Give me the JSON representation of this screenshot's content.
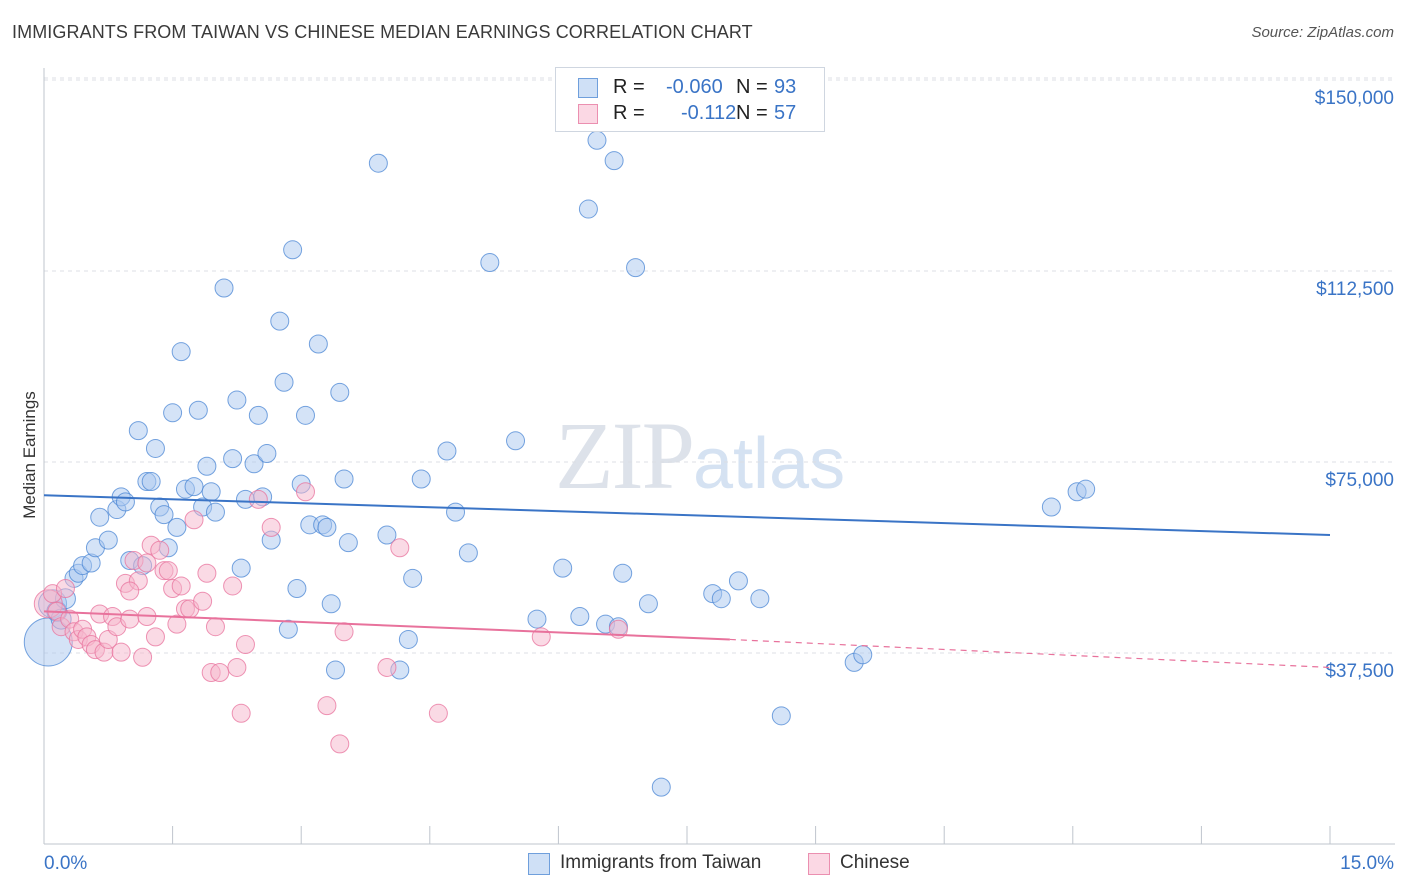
{
  "header": {
    "title": "IMMIGRANTS FROM TAIWAN VS CHINESE MEDIAN EARNINGS CORRELATION CHART",
    "source": "Source: ZipAtlas.com"
  },
  "watermark": {
    "zip": "ZIP",
    "atlas": "atlas"
  },
  "legend_top": {
    "rows": [
      {
        "r_label": "R =",
        "r_value": "-0.060",
        "n_label": "N =",
        "n_value": "93",
        "color": "#a9c8ef"
      },
      {
        "r_label": "R =",
        "r_value": "-0.112",
        "n_label": "N =",
        "n_value": "57",
        "color": "#f5b6cb"
      }
    ]
  },
  "legend_bottom": {
    "items": [
      {
        "label": "Immigrants from Taiwan",
        "color": "#a9c8ef"
      },
      {
        "label": "Chinese",
        "color": "#f5b6cb"
      }
    ]
  },
  "chart_data": {
    "type": "scatter",
    "title": "IMMIGRANTS FROM TAIWAN VS CHINESE MEDIAN EARNINGS CORRELATION CHART",
    "xlabel": "",
    "ylabel": "Median Earnings",
    "x_unit": "%",
    "xlim": [
      0,
      15
    ],
    "ylim": [
      8000,
      155000
    ],
    "x_tick_labels": [
      "0.0%",
      "15.0%"
    ],
    "y_ticks": [
      37500,
      75000,
      112500,
      150000
    ],
    "y_tick_labels": [
      "$37,500",
      "$75,000",
      "$112,500",
      "$150,000"
    ],
    "grid": "horizontal dashed",
    "legend_position": "top-center",
    "series": [
      {
        "name": "Immigrants from Taiwan",
        "color": "#4a86d4",
        "fill": "#a9c8ef",
        "trend": {
          "x": [
            0,
            15
          ],
          "y": [
            71800,
            64000
          ],
          "style": "solid"
        },
        "points": [
          [
            0.05,
            43000,
            24
          ],
          [
            0.1,
            50500,
            14
          ],
          [
            0.15,
            49000,
            10
          ],
          [
            0.2,
            47500,
            10
          ],
          [
            0.25,
            51500,
            10
          ],
          [
            0.35,
            55500,
            9
          ],
          [
            0.4,
            56500,
            9
          ],
          [
            0.45,
            58000,
            9
          ],
          [
            0.55,
            58500,
            9
          ],
          [
            0.6,
            61500,
            9
          ],
          [
            0.65,
            67500,
            9
          ],
          [
            0.75,
            63000,
            9
          ],
          [
            0.85,
            69000,
            9
          ],
          [
            0.9,
            71500,
            9
          ],
          [
            0.95,
            70500,
            9
          ],
          [
            1.0,
            59000,
            9
          ],
          [
            1.1,
            84500,
            9
          ],
          [
            1.15,
            58000,
            9
          ],
          [
            1.2,
            74500,
            9
          ],
          [
            1.25,
            74500,
            9
          ],
          [
            1.3,
            81000,
            9
          ],
          [
            1.35,
            69500,
            9
          ],
          [
            1.4,
            68000,
            9
          ],
          [
            1.45,
            61500,
            9
          ],
          [
            1.5,
            88000,
            9
          ],
          [
            1.55,
            65500,
            9
          ],
          [
            1.6,
            100000,
            9
          ],
          [
            1.65,
            73000,
            9
          ],
          [
            1.75,
            73500,
            9
          ],
          [
            1.8,
            88500,
            9
          ],
          [
            1.85,
            69500,
            9
          ],
          [
            1.9,
            77500,
            9
          ],
          [
            1.95,
            72500,
            9
          ],
          [
            2.0,
            68500,
            9
          ],
          [
            2.1,
            112500,
            9
          ],
          [
            2.2,
            79000,
            9
          ],
          [
            2.25,
            90500,
            9
          ],
          [
            2.3,
            57500,
            9
          ],
          [
            2.35,
            71000,
            9
          ],
          [
            2.45,
            78000,
            9
          ],
          [
            2.5,
            87500,
            9
          ],
          [
            2.55,
            71500,
            9
          ],
          [
            2.6,
            80000,
            9
          ],
          [
            2.65,
            63000,
            9
          ],
          [
            2.75,
            106000,
            9
          ],
          [
            2.8,
            94000,
            9
          ],
          [
            2.85,
            45500,
            9
          ],
          [
            2.9,
            120000,
            9
          ],
          [
            2.95,
            53500,
            9
          ],
          [
            3.0,
            74000,
            9
          ],
          [
            3.05,
            87500,
            9
          ],
          [
            3.1,
            66000,
            9
          ],
          [
            3.2,
            101500,
            9
          ],
          [
            3.25,
            66000,
            9
          ],
          [
            3.3,
            65500,
            9
          ],
          [
            3.35,
            50500,
            9
          ],
          [
            3.4,
            37500,
            9
          ],
          [
            3.45,
            92000,
            9
          ],
          [
            3.5,
            75000,
            9
          ],
          [
            3.55,
            62500,
            9
          ],
          [
            3.9,
            137000,
            9
          ],
          [
            4.0,
            64000,
            9
          ],
          [
            4.15,
            37500,
            9
          ],
          [
            4.25,
            43500,
            9
          ],
          [
            4.3,
            55500,
            9
          ],
          [
            4.4,
            75000,
            9
          ],
          [
            4.7,
            80500,
            9
          ],
          [
            4.8,
            68500,
            9
          ],
          [
            4.95,
            60500,
            9
          ],
          [
            5.2,
            117500,
            9
          ],
          [
            5.5,
            82500,
            9
          ],
          [
            5.75,
            47500,
            9
          ],
          [
            6.05,
            57500,
            9
          ],
          [
            6.25,
            48000,
            9
          ],
          [
            6.35,
            128000,
            9
          ],
          [
            6.45,
            141500,
            9
          ],
          [
            6.55,
            46500,
            9
          ],
          [
            6.65,
            137500,
            9
          ],
          [
            6.7,
            46000,
            9
          ],
          [
            6.75,
            56500,
            9
          ],
          [
            6.9,
            116500,
            9
          ],
          [
            7.05,
            50500,
            9
          ],
          [
            7.2,
            14500,
            9
          ],
          [
            7.8,
            52500,
            9
          ],
          [
            7.9,
            51500,
            9
          ],
          [
            8.1,
            55000,
            9
          ],
          [
            8.35,
            51500,
            9
          ],
          [
            8.6,
            28500,
            9
          ],
          [
            9.45,
            39000,
            9
          ],
          [
            9.55,
            40500,
            9
          ],
          [
            11.75,
            69500,
            9
          ],
          [
            12.05,
            72500,
            9
          ],
          [
            12.15,
            73000,
            9
          ]
        ]
      },
      {
        "name": "Chinese",
        "color": "#e8729c",
        "fill": "#f5b6cb",
        "trend": {
          "x": [
            0,
            8.0,
            15
          ],
          "y": [
            49000,
            43500,
            38000
          ],
          "style": "solid-then-dashed"
        },
        "points": [
          [
            0.05,
            50500,
            14
          ],
          [
            0.1,
            52500,
            9
          ],
          [
            0.15,
            49000,
            9
          ],
          [
            0.2,
            46000,
            9
          ],
          [
            0.25,
            53500,
            9
          ],
          [
            0.3,
            47500,
            9
          ],
          [
            0.35,
            45000,
            9
          ],
          [
            0.4,
            43500,
            9
          ],
          [
            0.45,
            45500,
            9
          ],
          [
            0.5,
            44000,
            9
          ],
          [
            0.55,
            42500,
            9
          ],
          [
            0.6,
            41500,
            9
          ],
          [
            0.65,
            48500,
            9
          ],
          [
            0.7,
            41000,
            9
          ],
          [
            0.75,
            43500,
            9
          ],
          [
            0.8,
            48000,
            9
          ],
          [
            0.85,
            46000,
            9
          ],
          [
            0.9,
            41000,
            9
          ],
          [
            0.95,
            54500,
            9
          ],
          [
            1.0,
            47500,
            9
          ],
          [
            1.05,
            59000,
            9
          ],
          [
            1.1,
            55000,
            9
          ],
          [
            1.15,
            40000,
            9
          ],
          [
            1.2,
            48000,
            9
          ],
          [
            1.25,
            62000,
            9
          ],
          [
            1.3,
            44000,
            9
          ],
          [
            1.35,
            61000,
            9
          ],
          [
            1.4,
            57000,
            9
          ],
          [
            1.45,
            57000,
            9
          ],
          [
            1.5,
            53500,
            9
          ],
          [
            1.55,
            46500,
            9
          ],
          [
            1.6,
            54000,
            9
          ],
          [
            1.65,
            49500,
            9
          ],
          [
            1.7,
            49500,
            9
          ],
          [
            1.75,
            67000,
            9
          ],
          [
            1.85,
            51000,
            9
          ],
          [
            1.9,
            56500,
            9
          ],
          [
            1.95,
            37000,
            9
          ],
          [
            2.0,
            46000,
            9
          ],
          [
            2.05,
            37000,
            9
          ],
          [
            2.2,
            54000,
            9
          ],
          [
            2.25,
            38000,
            9
          ],
          [
            2.3,
            29000,
            9
          ],
          [
            2.35,
            42500,
            9
          ],
          [
            2.5,
            71000,
            9
          ],
          [
            2.65,
            65500,
            9
          ],
          [
            3.05,
            72500,
            9
          ],
          [
            3.3,
            30500,
            9
          ],
          [
            3.45,
            23000,
            9
          ],
          [
            3.5,
            45000,
            9
          ],
          [
            4.0,
            38000,
            9
          ],
          [
            4.15,
            61500,
            9
          ],
          [
            4.6,
            29000,
            9
          ],
          [
            5.8,
            44000,
            9
          ],
          [
            6.7,
            45500,
            9
          ],
          [
            1.0,
            53000,
            9
          ],
          [
            1.2,
            58500,
            9
          ]
        ]
      }
    ]
  }
}
